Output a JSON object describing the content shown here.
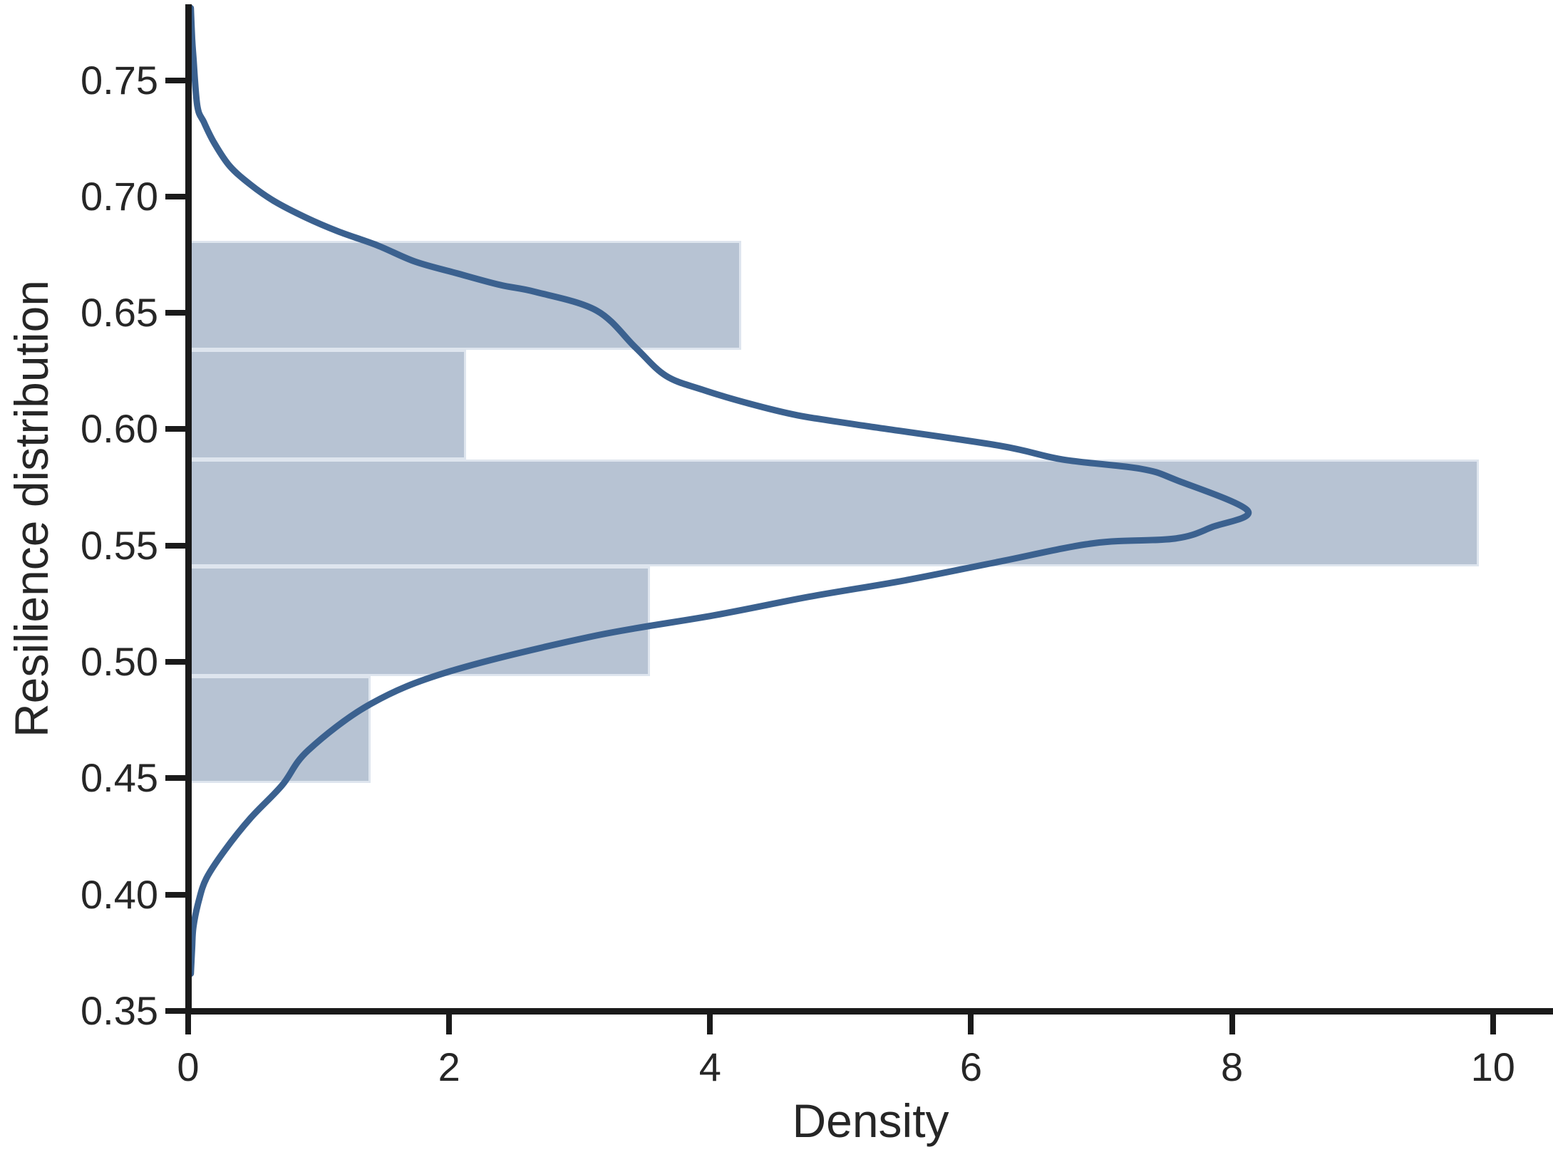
{
  "chart_data": {
    "type": "bar",
    "variant": "horizontal-histogram-with-kde",
    "title": "",
    "xlabel": "Density",
    "ylabel": "Resilience distribution",
    "x_axis": {
      "min": 0,
      "max": 10.46,
      "ticks": [
        0,
        2,
        4,
        6,
        8,
        10
      ]
    },
    "y_axis": {
      "min": 0.35,
      "max": 0.782,
      "ticks": [
        0.35,
        0.4,
        0.45,
        0.5,
        0.55,
        0.6,
        0.65,
        0.7,
        0.75
      ],
      "tick_format": "2dp"
    },
    "grid": false,
    "legend": false,
    "bars": [
      {
        "value_from": 0.634,
        "value_to": 0.681,
        "density": 4.24
      },
      {
        "value_from": 0.587,
        "value_to": 0.634,
        "density": 2.13
      },
      {
        "value_from": 0.541,
        "value_to": 0.587,
        "density": 9.89
      },
      {
        "value_from": 0.494,
        "value_to": 0.541,
        "density": 3.54
      },
      {
        "value_from": 0.448,
        "value_to": 0.494,
        "density": 1.4
      }
    ],
    "kde_curve": [
      [
        0.02,
        0.781
      ],
      [
        0.03,
        0.768
      ],
      [
        0.04,
        0.76
      ],
      [
        0.07,
        0.739
      ],
      [
        0.12,
        0.732
      ],
      [
        0.2,
        0.723
      ],
      [
        0.32,
        0.713
      ],
      [
        0.48,
        0.705
      ],
      [
        0.66,
        0.698
      ],
      [
        0.9,
        0.691
      ],
      [
        1.15,
        0.685
      ],
      [
        1.45,
        0.679
      ],
      [
        1.74,
        0.672
      ],
      [
        2.06,
        0.667
      ],
      [
        2.39,
        0.662
      ],
      [
        2.66,
        0.659
      ],
      [
        3.13,
        0.651
      ],
      [
        3.43,
        0.635
      ],
      [
        3.66,
        0.623
      ],
      [
        3.94,
        0.617
      ],
      [
        4.3,
        0.611
      ],
      [
        4.67,
        0.606
      ],
      [
        5.12,
        0.602
      ],
      [
        6.21,
        0.593
      ],
      [
        6.7,
        0.587
      ],
      [
        7.3,
        0.583
      ],
      [
        7.58,
        0.578
      ],
      [
        8.12,
        0.565
      ],
      [
        7.85,
        0.558
      ],
      [
        7.56,
        0.553
      ],
      [
        6.94,
        0.551
      ],
      [
        6.21,
        0.543
      ],
      [
        5.49,
        0.535
      ],
      [
        4.76,
        0.528
      ],
      [
        4.03,
        0.52
      ],
      [
        3.1,
        0.511
      ],
      [
        2.01,
        0.496
      ],
      [
        1.4,
        0.482
      ],
      [
        0.92,
        0.462
      ],
      [
        0.72,
        0.447
      ],
      [
        0.48,
        0.433
      ],
      [
        0.28,
        0.419
      ],
      [
        0.14,
        0.407
      ],
      [
        0.08,
        0.397
      ],
      [
        0.04,
        0.386
      ],
      [
        0.03,
        0.377
      ],
      [
        0.02,
        0.366
      ]
    ],
    "colors": {
      "bar_fill": "#b7c3d3",
      "bar_edge": "#dee5ee",
      "kde_line": "#3b618f",
      "spine": "#1a1a1a",
      "text": "#262626",
      "background": "#ffffff"
    }
  }
}
